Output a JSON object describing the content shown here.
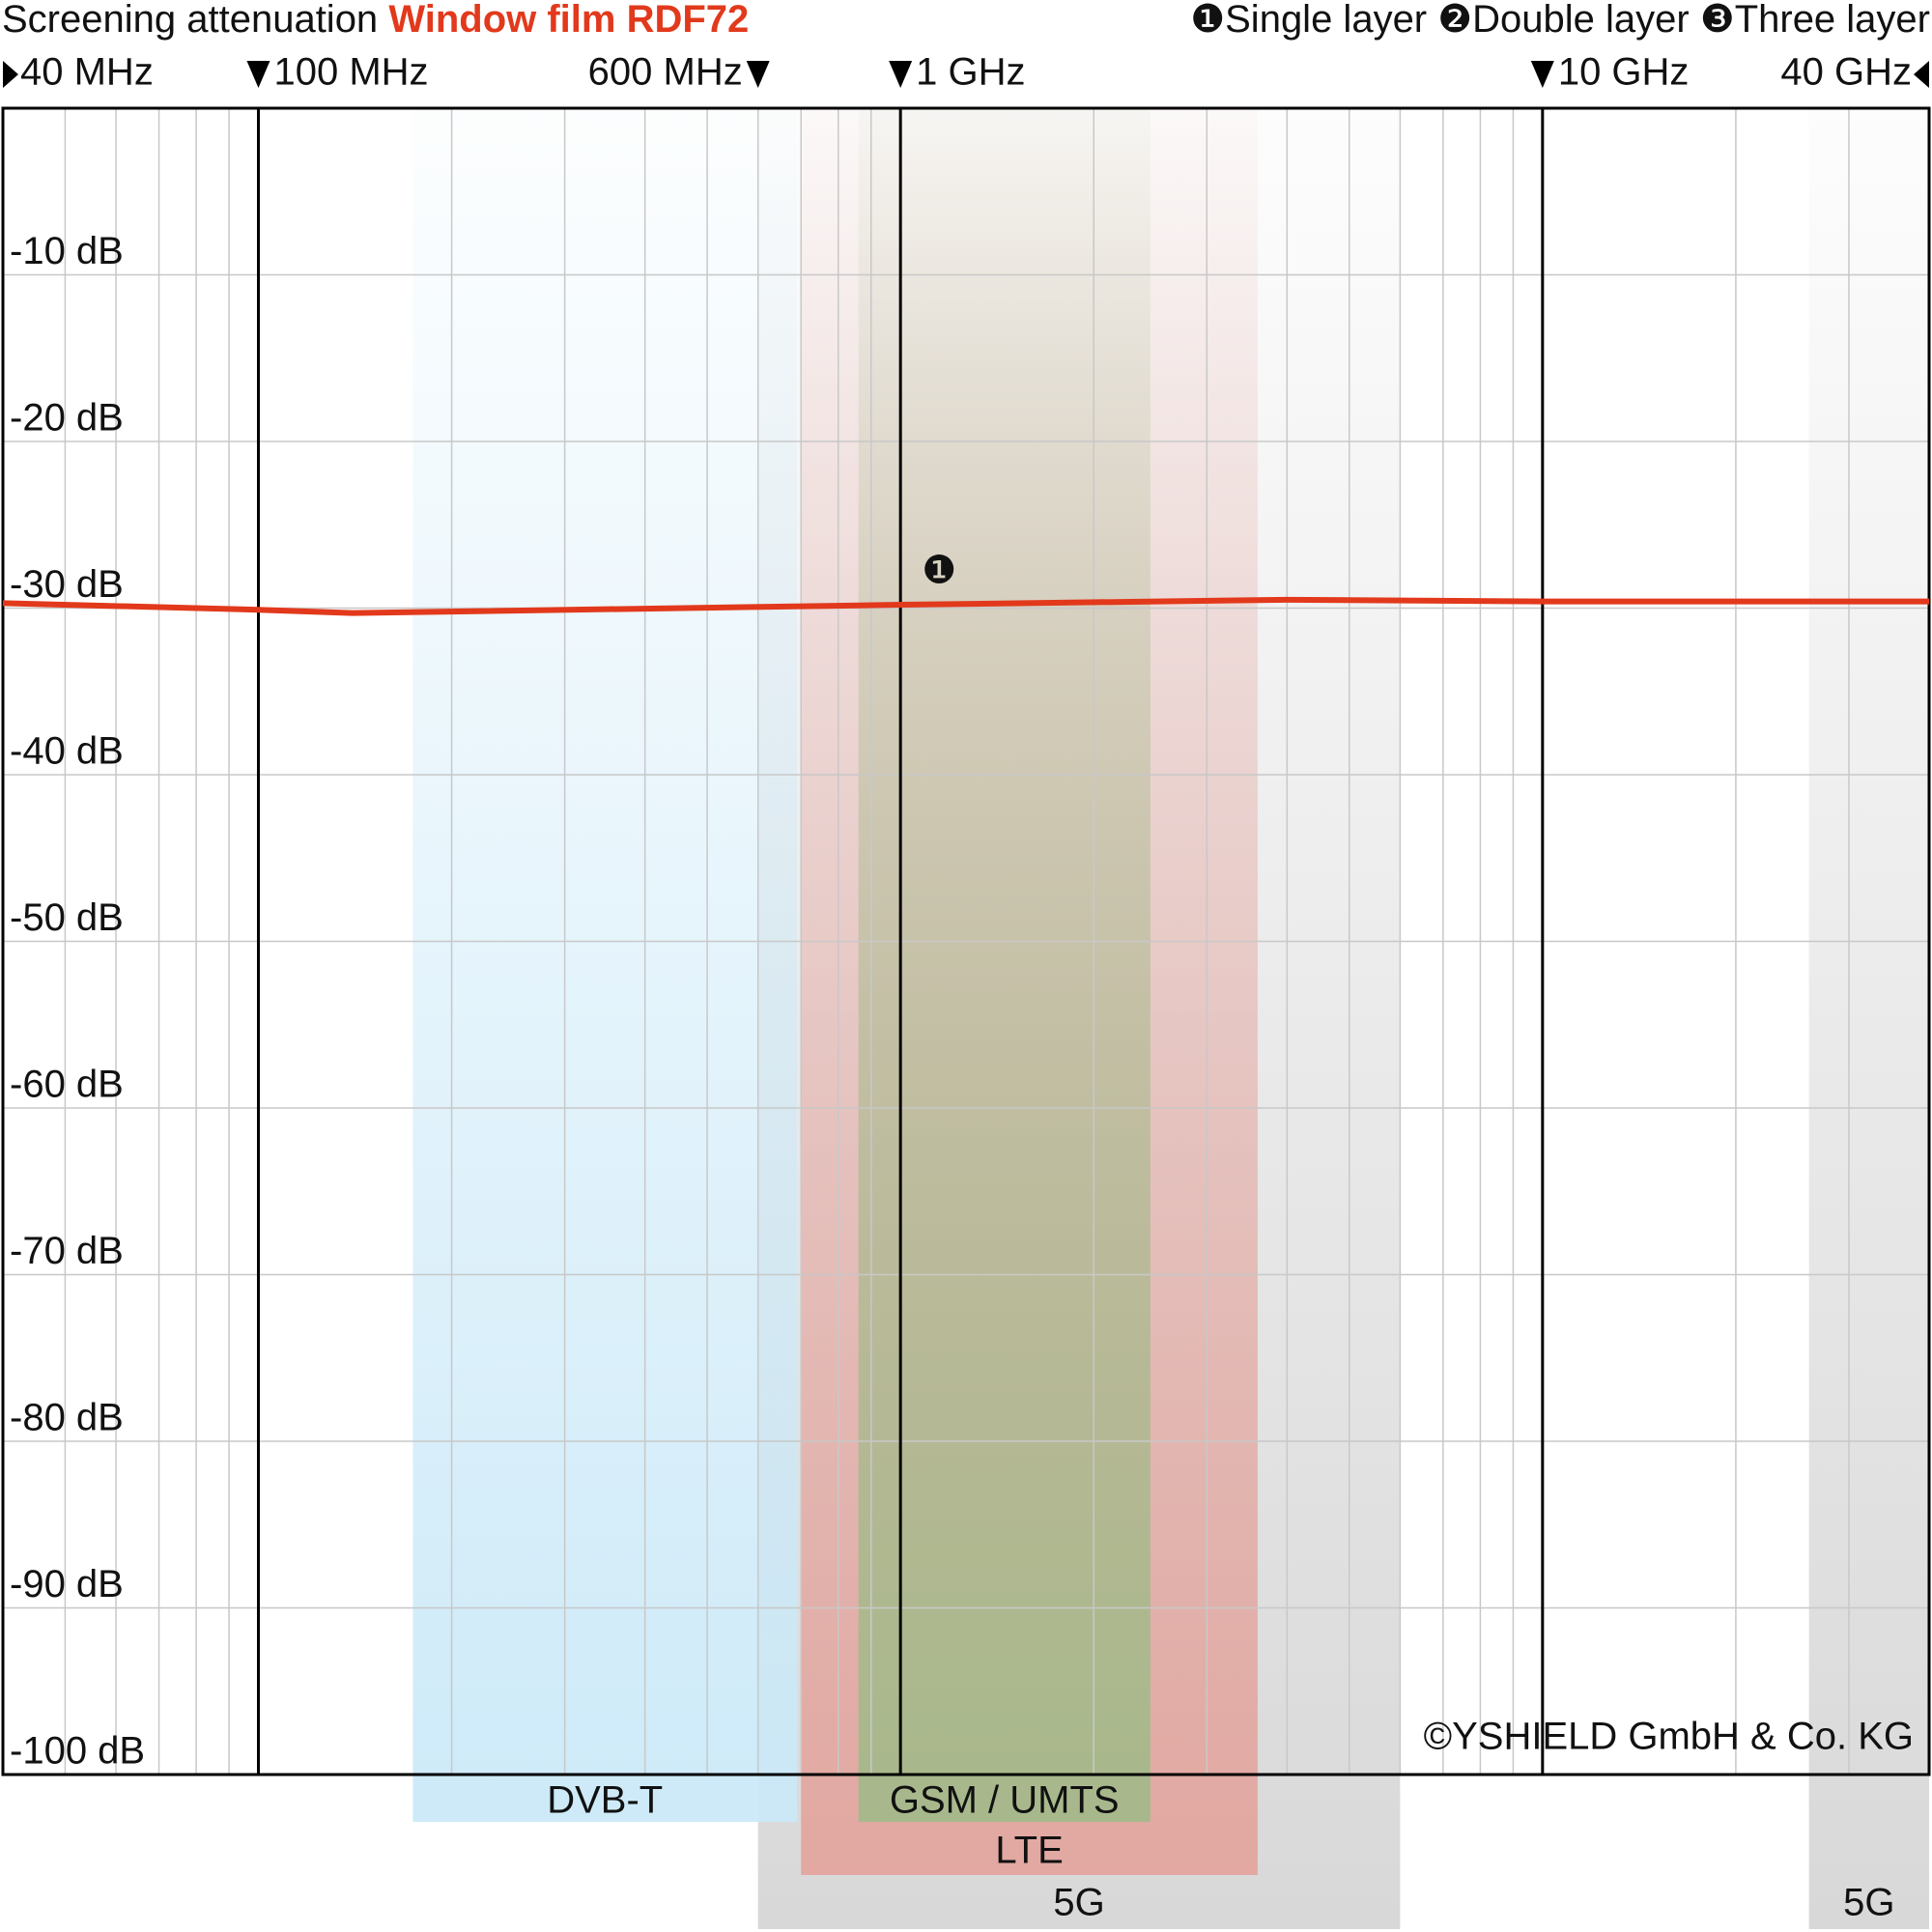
{
  "chart_data": {
    "type": "line",
    "title": "Screening attenuation",
    "product": "Window film RDF72",
    "product_color": "#e2391c",
    "copyright": "©YSHIELD GmbH & Co. KG",
    "log_x": true,
    "grid": true,
    "xlim": [
      40,
      40000
    ],
    "ylim": [
      -100,
      0
    ],
    "xticks": [
      {
        "value": 40,
        "label": "40 MHz"
      },
      {
        "value": 100,
        "label": "100 MHz"
      },
      {
        "value": 600,
        "label": "600 MHz"
      },
      {
        "value": 1000,
        "label": "1 GHz"
      },
      {
        "value": 10000,
        "label": "10 GHz"
      },
      {
        "value": 40000,
        "label": "40 GHz"
      }
    ],
    "xminor": [
      50,
      60,
      70,
      80,
      90,
      200,
      300,
      400,
      500,
      600,
      700,
      800,
      900,
      2000,
      3000,
      4000,
      5000,
      6000,
      7000,
      8000,
      9000,
      20000,
      30000
    ],
    "yticks": [
      {
        "value": -10,
        "label": "-10 dB"
      },
      {
        "value": -20,
        "label": "-20 dB"
      },
      {
        "value": -30,
        "label": "-30 dB"
      },
      {
        "value": -40,
        "label": "-40 dB"
      },
      {
        "value": -50,
        "label": "-50 dB"
      },
      {
        "value": -60,
        "label": "-60 dB"
      },
      {
        "value": -70,
        "label": "-70 dB"
      },
      {
        "value": -80,
        "label": "-80 dB"
      },
      {
        "value": -90,
        "label": "-90 dB"
      },
      {
        "value": -100,
        "label": "-100 dB"
      }
    ],
    "x": [
      40,
      100,
      140,
      1000,
      4000,
      10000,
      40000
    ],
    "series": [
      {
        "name": "Single layer",
        "symbol": "❶",
        "color": "#e2391c",
        "values": [
          -29.7,
          -30.1,
          -30.3,
          -29.8,
          -29.5,
          -29.6,
          -29.6
        ]
      }
    ],
    "other_layers": [
      {
        "symbol": "❷",
        "label": "Double layer"
      },
      {
        "symbol": "❸",
        "label": "Three layer"
      }
    ],
    "bands": [
      {
        "label": "5G",
        "range": [
          600,
          6000
        ],
        "color": "#d6d6d6"
      },
      {
        "label": "5G",
        "range": [
          26000,
          40000
        ],
        "color": "#d6d6d6"
      },
      {
        "label": "LTE",
        "range": [
          700,
          3600
        ],
        "color": "#e3a59e"
      },
      {
        "label": "DVB-T",
        "range": [
          174,
          690
        ],
        "color": "#cbe9f8"
      },
      {
        "label": "GSM / UMTS",
        "range": [
          860,
          2450
        ],
        "color": "#a4b98a"
      }
    ]
  }
}
